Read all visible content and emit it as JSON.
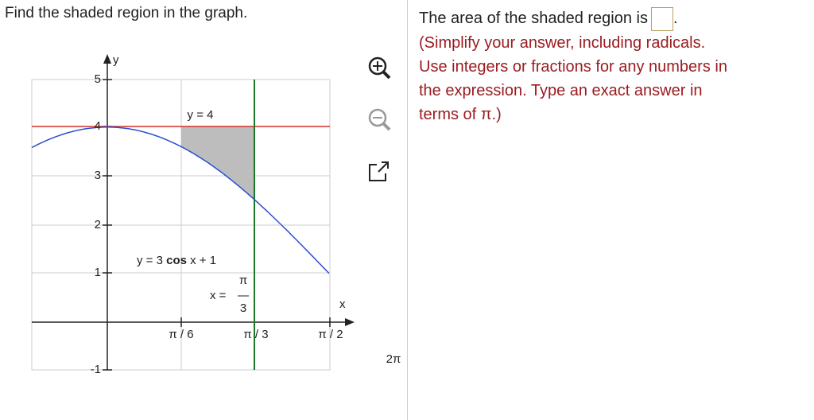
{
  "question": "Find the shaded region in the graph.",
  "graph": {
    "axis_labels": {
      "x": "x",
      "y": "y"
    },
    "y_tick_labels": [
      "5",
      "4",
      "3",
      "2",
      "1",
      "-1"
    ],
    "x_tick_labels": [
      "π / 6",
      "π / 3",
      "π / 2"
    ],
    "line_label": "y = 4",
    "curve_label": {
      "prefix": "y = 3",
      "func": "cos",
      "suffix": "x + 1"
    },
    "vertical_label": {
      "prefix": "x =",
      "numerator": "π",
      "denominator": "3"
    },
    "extra_label": "2π"
  },
  "answer": {
    "prompt": "The area of the shaded region is",
    "period": ".",
    "instructions": [
      "(Simplify your answer, including radicals.",
      "Use integers or fractions for any numbers in",
      "the expression. Type an exact answer in",
      "terms of π.)"
    ]
  }
}
